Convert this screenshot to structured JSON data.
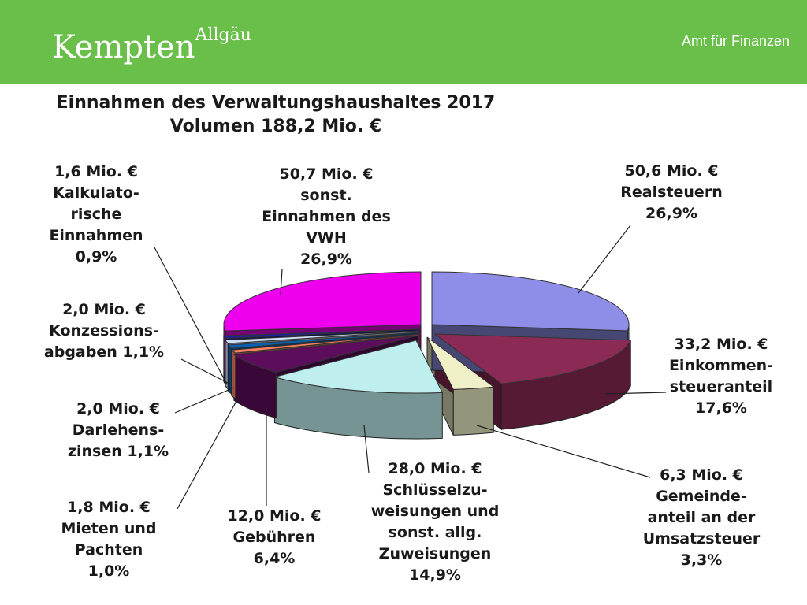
{
  "header": {
    "logo_main": "Kempten",
    "logo_sup": "Allgäu",
    "department": "Amt für Finanzen"
  },
  "chart_data": {
    "type": "pie",
    "title": "Einnahmen des Verwaltungshaushaltes 2017",
    "subtitle": "Volumen 188,2 Mio. €",
    "slices": [
      {
        "name": "Realsteuern",
        "value": 50.6,
        "percent": 26.9,
        "color": "#8e8ee8",
        "label_lines": [
          "50,6 Mio. €",
          "Realsteuern",
          "26,9%"
        ]
      },
      {
        "name": "Einkommensteueranteil",
        "value": 33.2,
        "percent": 17.6,
        "color": "#8b2a55",
        "label_lines": [
          "33,2 Mio. €",
          "Einkommen-",
          "steueranteil",
          "17,6%"
        ]
      },
      {
        "name": "Gemeindeanteil an der Umsatzsteuer",
        "value": 6.3,
        "percent": 3.3,
        "color": "#f0f0c8",
        "label_lines": [
          "6,3 Mio. €",
          "Gemeinde-",
          "anteil an der",
          "Umsatzsteuer",
          "3,3%"
        ]
      },
      {
        "name": "Schlüsselzuweisungen und sonst. allg. Zuweisungen",
        "value": 28.0,
        "percent": 14.9,
        "color": "#bfeeee",
        "label_lines": [
          "28,0 Mio. €",
          "Schlüsselzu-",
          "weisungen und",
          "sonst. allg.",
          "Zuweisungen",
          "14,9%"
        ]
      },
      {
        "name": "Gebühren",
        "value": 12.0,
        "percent": 6.4,
        "color": "#5c0d5c",
        "label_lines": [
          "12,0 Mio. €",
          "Gebühren",
          "6,4%"
        ]
      },
      {
        "name": "Mieten und Pachten",
        "value": 1.8,
        "percent": 1.0,
        "color": "#ff8060",
        "label_lines": [
          "1,8 Mio. €",
          "Mieten und",
          "Pachten",
          "1,0%"
        ]
      },
      {
        "name": "Darlehenszinsen",
        "value": 2.0,
        "percent": 1.1,
        "color": "#0a60b0",
        "label_lines": [
          "2,0 Mio. €",
          "Darlehens-",
          "zinsen 1,1%"
        ]
      },
      {
        "name": "Konzessionsabgaben",
        "value": 2.0,
        "percent": 1.1,
        "color": "#cfe0f8",
        "label_lines": [
          "2,0 Mio. €",
          "Konzessions-",
          "abgaben 1,1%"
        ]
      },
      {
        "name": "Kalkulatorische Einnahmen",
        "value": 1.6,
        "percent": 0.9,
        "color": "#20209a",
        "label_lines": [
          "1,6 Mio. €",
          "Kalkulato-",
          "rische",
          "Einnahmen",
          "0,9%"
        ]
      },
      {
        "name": "sonst. Einnahmen des VWH",
        "value": 50.7,
        "percent": 26.9,
        "color": "#ee00ee",
        "label_lines": [
          "50,7 Mio. €",
          "sonst.",
          "Einnahmen des",
          "VWH",
          "26,9%"
        ]
      }
    ]
  }
}
